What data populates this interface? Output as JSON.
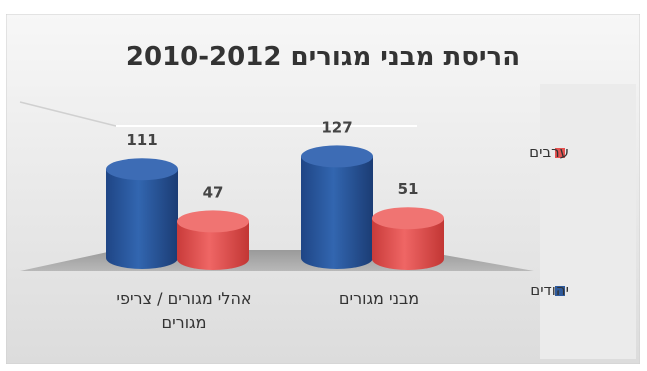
{
  "chart_data": {
    "type": "bar",
    "title": "הריסת מבני מגורים 2010-2012",
    "categories": [
      "מבני מגורים",
      "אהלי מגורים / צריפי מגורים"
    ],
    "category_lines": [
      [
        "מבני מגורים"
      ],
      [
        "אהלי מגורים / צריפי",
        "מגורים"
      ]
    ],
    "series": [
      {
        "name": "יהודים",
        "values": [
          127,
          111
        ],
        "color": "#2e5a9c"
      },
      {
        "name": "ערבים",
        "values": [
          51,
          47
        ],
        "color": "#e45250"
      }
    ],
    "value_labels": [
      "127",
      "111",
      "51",
      "47"
    ],
    "ylim": [
      0,
      140
    ],
    "legend_position": "right",
    "style": "3d-cylinder",
    "grid": false
  }
}
